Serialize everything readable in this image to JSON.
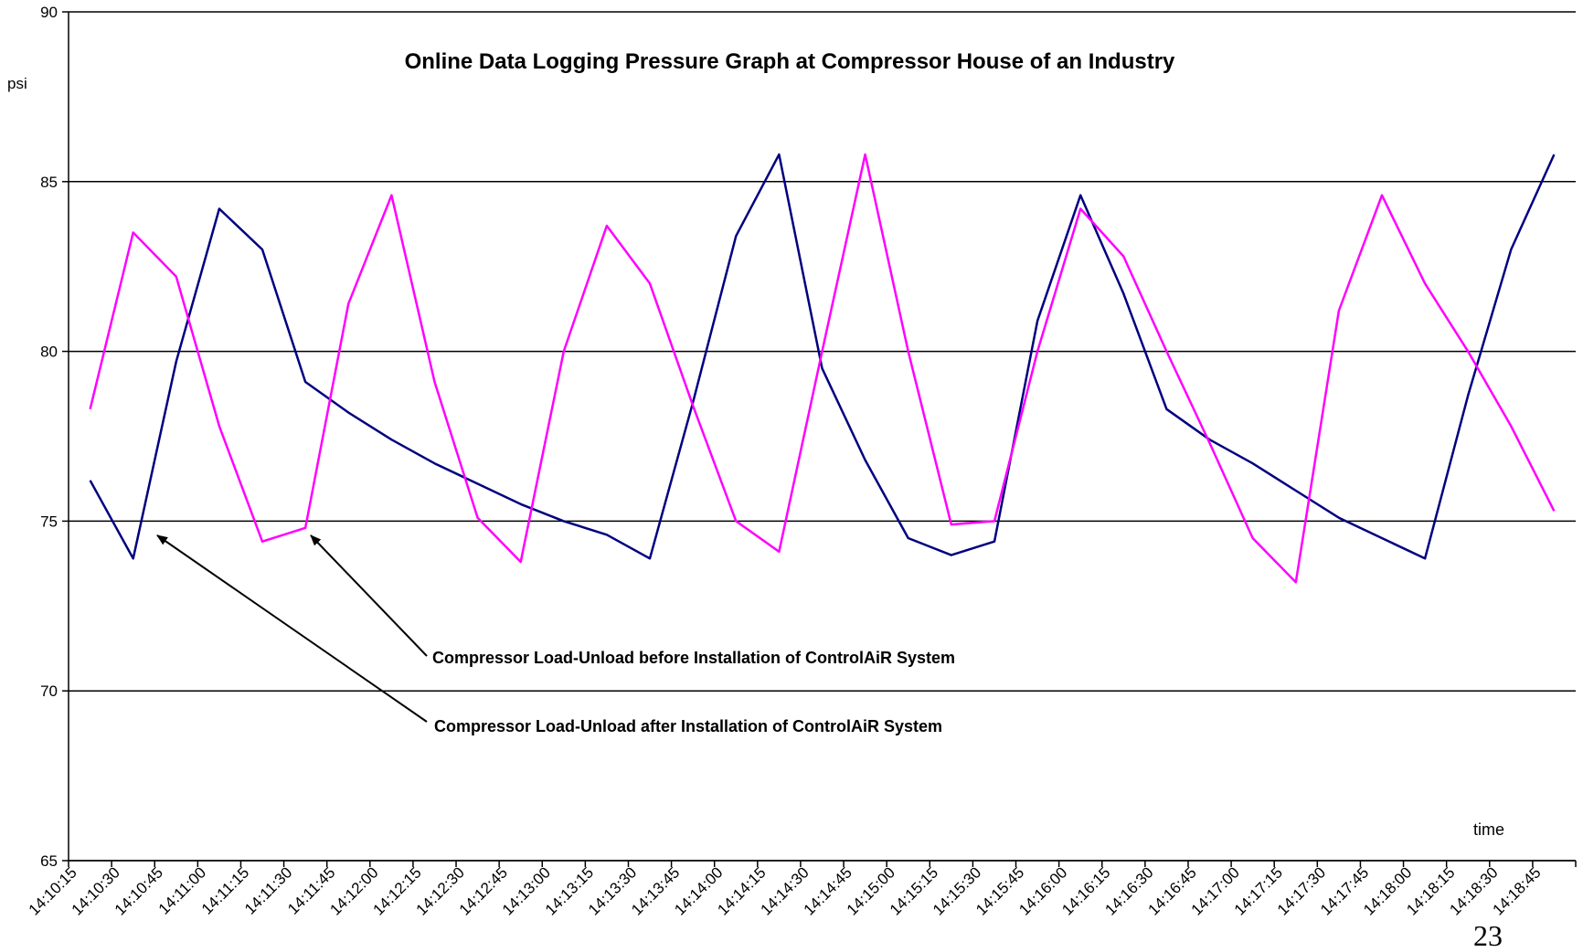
{
  "chart_data": {
    "type": "line",
    "title": "Online Data Logging Pressure Graph at Compressor House of an Industry",
    "y_label": "psi",
    "x_label": "time",
    "annotations": [
      "Compressor Load-Unload before Installation of ControlAiR System",
      "Compressor Load-Unload after Installation of ControlAiR System"
    ],
    "page_number": "23",
    "categories": [
      "14:10:15",
      "14:10:30",
      "14:10:45",
      "14:11:00",
      "14:11:15",
      "14:11:30",
      "14:11:45",
      "14:12:00",
      "14:12:15",
      "14:12:30",
      "14:12:45",
      "14:13:00",
      "14:13:15",
      "14:13:30",
      "14:13:45",
      "14:14:00",
      "14:14:15",
      "14:14:30",
      "14:14:45",
      "14:15:00",
      "14:15:15",
      "14:15:30",
      "14:15:45",
      "14:16:00",
      "14:16:15",
      "14:16:30",
      "14:16:45",
      "14:17:00",
      "14:17:15",
      "14:17:30",
      "14:17:45",
      "14:18:00",
      "14:18:15",
      "14:18:30",
      "14:18:45"
    ],
    "series": [
      {
        "color": "#000080",
        "values": [
          76.2,
          73.9,
          79.7,
          84.2,
          83.0,
          79.1,
          78.2,
          77.4,
          76.7,
          76.1,
          75.5,
          75.0,
          74.6,
          73.9,
          78.5,
          83.4,
          85.8,
          79.5,
          76.8,
          74.5,
          74.0,
          74.4,
          80.9,
          84.6,
          81.7,
          78.3,
          77.4,
          76.7,
          75.9,
          75.1,
          74.5,
          73.9,
          78.7,
          83.0,
          85.8
        ]
      },
      {
        "color": "#ff00ff",
        "values": [
          78.3,
          83.5,
          82.2,
          77.8,
          74.4,
          74.8,
          81.4,
          84.6,
          79.1,
          75.1,
          73.8,
          80.0,
          83.7,
          82.0,
          78.4,
          75.0,
          74.1,
          80.0,
          85.8,
          80.0,
          74.9,
          75.0,
          80.0,
          84.2,
          82.8,
          80.0,
          77.3,
          74.5,
          73.2,
          81.2,
          84.6,
          82.0,
          80.0,
          77.8,
          75.3
        ]
      }
    ],
    "ylim": [
      65,
      90
    ],
    "yticks": [
      65,
      70,
      75,
      80,
      85,
      90
    ],
    "grid": true
  }
}
